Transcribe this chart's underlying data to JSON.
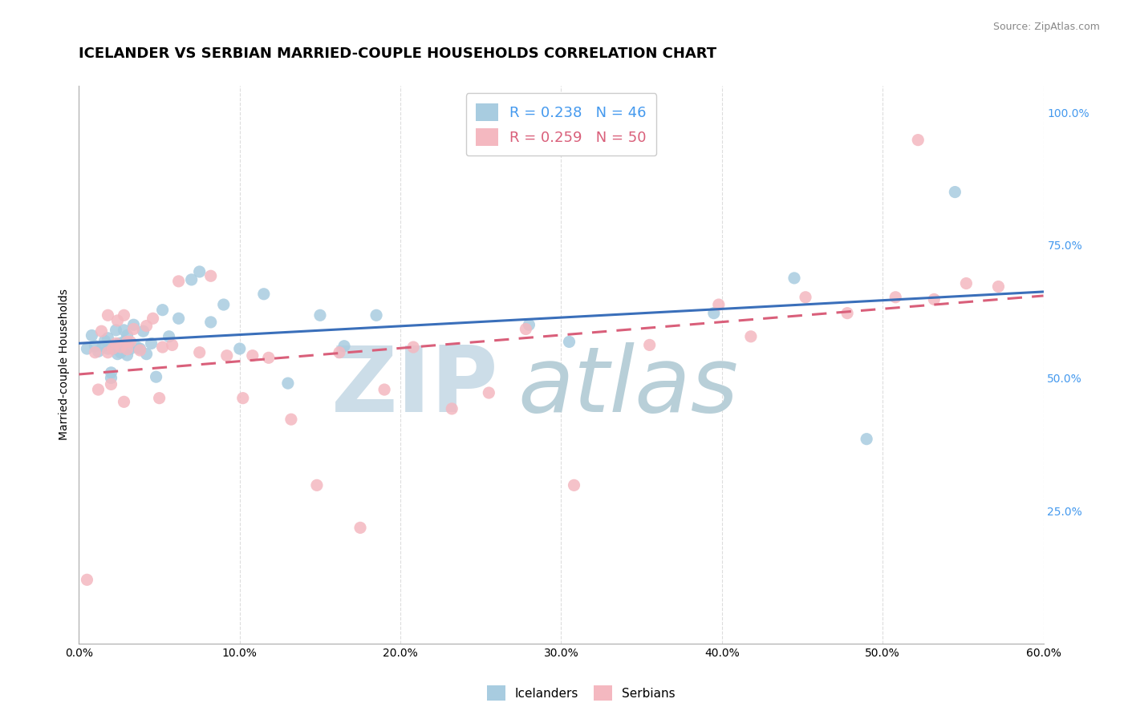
{
  "title": "ICELANDER VS SERBIAN MARRIED-COUPLE HOUSEHOLDS CORRELATION CHART",
  "source": "Source: ZipAtlas.com",
  "ylabel": "Married-couple Households",
  "xlim": [
    0.0,
    0.6
  ],
  "ylim": [
    0.0,
    1.05
  ],
  "xticks": [
    0.0,
    0.1,
    0.2,
    0.3,
    0.4,
    0.5,
    0.6
  ],
  "xticklabels": [
    "0.0%",
    "10.0%",
    "20.0%",
    "30.0%",
    "40.0%",
    "50.0%",
    "60.0%"
  ],
  "yticks_right": [
    0.25,
    0.5,
    0.75,
    1.0
  ],
  "yticklabels_right": [
    "25.0%",
    "50.0%",
    "75.0%",
    "100.0%"
  ],
  "icelander_color": "#a8cce0",
  "serbian_color": "#f4b8c0",
  "icelander_line_color": "#3a6fba",
  "serbian_line_color": "#d95f7a",
  "R_icelander": 0.238,
  "N_icelander": 46,
  "R_serbian": 0.259,
  "N_serbian": 50,
  "icelander_points_x": [
    0.005,
    0.008,
    0.01,
    0.012,
    0.015,
    0.016,
    0.018,
    0.018,
    0.02,
    0.02,
    0.022,
    0.023,
    0.024,
    0.025,
    0.026,
    0.028,
    0.028,
    0.03,
    0.03,
    0.032,
    0.034,
    0.036,
    0.038,
    0.04,
    0.042,
    0.045,
    0.048,
    0.052,
    0.056,
    0.062,
    0.07,
    0.075,
    0.082,
    0.09,
    0.1,
    0.115,
    0.13,
    0.15,
    0.165,
    0.185,
    0.28,
    0.305,
    0.395,
    0.445,
    0.49,
    0.545
  ],
  "icelander_points_y": [
    0.555,
    0.58,
    0.56,
    0.55,
    0.56,
    0.57,
    0.555,
    0.575,
    0.5,
    0.51,
    0.555,
    0.59,
    0.545,
    0.565,
    0.548,
    0.568,
    0.59,
    0.543,
    0.58,
    0.555,
    0.6,
    0.558,
    0.555,
    0.588,
    0.545,
    0.565,
    0.502,
    0.628,
    0.578,
    0.612,
    0.685,
    0.7,
    0.605,
    0.638,
    0.555,
    0.658,
    0.49,
    0.618,
    0.56,
    0.618,
    0.6,
    0.568,
    0.622,
    0.688,
    0.385,
    0.85
  ],
  "serbian_points_x": [
    0.005,
    0.01,
    0.012,
    0.014,
    0.018,
    0.018,
    0.02,
    0.021,
    0.023,
    0.024,
    0.026,
    0.028,
    0.028,
    0.03,
    0.03,
    0.032,
    0.034,
    0.038,
    0.042,
    0.046,
    0.05,
    0.052,
    0.058,
    0.062,
    0.075,
    0.082,
    0.092,
    0.102,
    0.108,
    0.118,
    0.132,
    0.148,
    0.162,
    0.175,
    0.19,
    0.208,
    0.232,
    0.255,
    0.278,
    0.308,
    0.355,
    0.398,
    0.418,
    0.452,
    0.478,
    0.508,
    0.522,
    0.532,
    0.552,
    0.572
  ],
  "serbian_points_y": [
    0.12,
    0.548,
    0.478,
    0.588,
    0.548,
    0.618,
    0.488,
    0.555,
    0.565,
    0.608,
    0.558,
    0.618,
    0.455,
    0.554,
    0.568,
    0.568,
    0.592,
    0.552,
    0.598,
    0.612,
    0.462,
    0.558,
    0.562,
    0.682,
    0.548,
    0.692,
    0.542,
    0.462,
    0.542,
    0.538,
    0.422,
    0.298,
    0.548,
    0.218,
    0.478,
    0.558,
    0.442,
    0.472,
    0.592,
    0.298,
    0.562,
    0.638,
    0.578,
    0.652,
    0.622,
    0.652,
    0.948,
    0.648,
    0.678,
    0.672
  ],
  "background_color": "#ffffff",
  "grid_color": "#dddddd",
  "title_fontsize": 13,
  "axis_fontsize": 10,
  "tick_fontsize": 10,
  "right_tick_color": "#4499ee",
  "bottom_legend": [
    "Icelanders",
    "Serbians"
  ]
}
